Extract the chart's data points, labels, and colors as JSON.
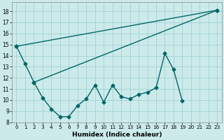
{
  "background_color": "#cceaea",
  "grid_color": "#99cccc",
  "line_color": "#006666",
  "xlabel": "Humidex (Indice chaleur)",
  "xlim": [
    -0.5,
    23.5
  ],
  "ylim": [
    8,
    18.8
  ],
  "yticks": [
    8,
    9,
    10,
    11,
    12,
    13,
    14,
    15,
    16,
    17,
    18
  ],
  "xticks": [
    0,
    1,
    2,
    3,
    4,
    5,
    6,
    7,
    8,
    9,
    10,
    11,
    12,
    13,
    14,
    15,
    16,
    17,
    18,
    19,
    20,
    21,
    22,
    23
  ],
  "line1_x": [
    0,
    23
  ],
  "line1_y": [
    14.85,
    18.1
  ],
  "line2_x": [
    2,
    23
  ],
  "line2_y": [
    11.6,
    18.1
  ],
  "line3_x": [
    0,
    1,
    2,
    3,
    4,
    5,
    6,
    7,
    8,
    9,
    10,
    11,
    12,
    13,
    14,
    15,
    16,
    17,
    18,
    19
  ],
  "line3_y": [
    14.85,
    13.25,
    11.6,
    10.2,
    9.2,
    8.5,
    8.5,
    9.5,
    10.1,
    11.35,
    9.8,
    11.35,
    10.3,
    10.1,
    10.5,
    10.7,
    11.1,
    14.2,
    12.75,
    9.9
  ]
}
